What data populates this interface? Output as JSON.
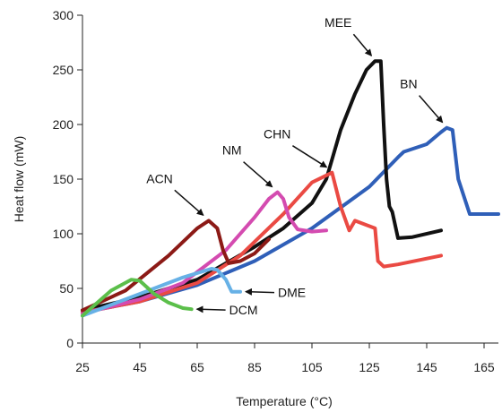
{
  "chart_data": {
    "type": "line",
    "title": "",
    "xlabel": "Temperature (°C)",
    "ylabel": "Heat flow (mW)",
    "xlim": [
      25,
      170
    ],
    "ylim": [
      0,
      300
    ],
    "xticks": [
      25,
      45,
      65,
      85,
      105,
      125,
      145,
      165
    ],
    "yticks": [
      0,
      50,
      100,
      150,
      200,
      250,
      300
    ],
    "grid": false,
    "legend": "none",
    "series": [
      {
        "name": "BN",
        "color": "#2f5fb8",
        "x": [
          25,
          45,
          65,
          85,
          105,
          125,
          135,
          137,
          145,
          150,
          152,
          154,
          156,
          160,
          165,
          170
        ],
        "y": [
          28,
          38,
          53,
          75,
          105,
          143,
          170,
          175,
          182,
          193,
          197,
          195,
          150,
          118,
          118,
          118
        ]
      },
      {
        "name": "MEE",
        "color": "#111111",
        "x": [
          25,
          45,
          65,
          75,
          85,
          95,
          105,
          110,
          115,
          120,
          124,
          127,
          129,
          130,
          131,
          132,
          133,
          135,
          140,
          150
        ],
        "y": [
          30,
          42,
          58,
          73,
          88,
          105,
          128,
          150,
          195,
          228,
          250,
          258,
          258,
          200,
          150,
          125,
          120,
          96,
          97,
          103
        ]
      },
      {
        "name": "CHN",
        "color": "#ea4a43",
        "x": [
          25,
          45,
          65,
          80,
          95,
          105,
          112,
          115,
          118,
          120,
          124,
          127,
          128,
          130,
          135,
          150
        ],
        "y": [
          28,
          38,
          55,
          80,
          118,
          147,
          156,
          125,
          103,
          112,
          108,
          105,
          75,
          70,
          72,
          80
        ]
      },
      {
        "name": "NM",
        "color": "#d44bb0",
        "x": [
          25,
          45,
          60,
          75,
          85,
          90,
          93,
          95,
          97,
          100,
          105,
          110
        ],
        "y": [
          27,
          40,
          55,
          85,
          115,
          132,
          138,
          132,
          115,
          104,
          102,
          103
        ]
      },
      {
        "name": "ACN",
        "color": "#8c1a16",
        "x": [
          25,
          40,
          55,
          65,
          69,
          72,
          74,
          76,
          80,
          85,
          90
        ],
        "y": [
          30,
          48,
          80,
          105,
          112,
          105,
          85,
          73,
          75,
          82,
          95
        ]
      },
      {
        "name": "DME",
        "color": "#67b1e6",
        "x": [
          25,
          45,
          60,
          70,
          72,
          75,
          77,
          80
        ],
        "y": [
          25,
          45,
          60,
          68,
          67,
          58,
          47,
          47
        ]
      },
      {
        "name": "DCM",
        "color": "#5bbf4a",
        "x": [
          25,
          35,
          42,
          45,
          50,
          55,
          60,
          63
        ],
        "y": [
          25,
          48,
          58,
          57,
          45,
          37,
          32,
          31
        ]
      }
    ],
    "annotations": [
      {
        "text": "MEE",
        "series": "MEE",
        "x": 127,
        "y": 258
      },
      {
        "text": "BN",
        "series": "BN",
        "x": 153,
        "y": 197
      },
      {
        "text": "CHN",
        "series": "CHN",
        "x": 112,
        "y": 156
      },
      {
        "text": "NM",
        "series": "NM",
        "x": 93,
        "y": 138
      },
      {
        "text": "ACN",
        "series": "ACN",
        "x": 69,
        "y": 112
      },
      {
        "text": "DME",
        "series": "DME",
        "x": 80,
        "y": 47
      },
      {
        "text": "DCM",
        "series": "DCM",
        "x": 63,
        "y": 31
      }
    ]
  }
}
